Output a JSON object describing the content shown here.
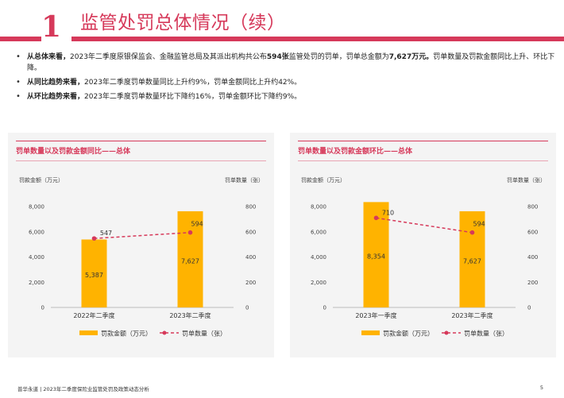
{
  "header": {
    "section_number": "1",
    "title": "监管处罚总体情况（续）"
  },
  "bullets": [
    {
      "lead": "从总体来看，",
      "text_before": "2023年二季度原银保监会、金融监管总局及其派出机构共公布",
      "bold_count": "594张",
      "text_mid": "监管处罚的罚单，罚单总金额为",
      "bold_amount": "7,627万元。",
      "text_after": "罚单数量及罚款金额同比上升、环比下降。"
    },
    {
      "lead": "从同比趋势来看，",
      "text": "2023年二季度罚单数量同比上升约9%，罚单金额同比上升约42%。"
    },
    {
      "lead": "从环比趋势来看，",
      "text": "2023年二季度罚单数量环比下降约16%，罚单金额环比下降约9%。"
    }
  ],
  "colors": {
    "accent": "#d6395a",
    "bar": "#ffb300",
    "line": "#d6395a",
    "panel_bg": "#f4f4f4"
  },
  "chart_data": [
    {
      "type": "bar",
      "title": "罚单数量以及罚款金额同比——总体",
      "categories": [
        "2022年二季度",
        "2023年二季度"
      ],
      "series": [
        {
          "name": "罚款金额（万元）",
          "type": "bar",
          "axis": "left",
          "values": [
            5387,
            7627
          ],
          "labels": [
            "5,387",
            "7,627"
          ]
        },
        {
          "name": "罚单数量（张）",
          "type": "line",
          "axis": "right",
          "values": [
            547,
            594
          ],
          "labels": [
            "547",
            "594"
          ]
        }
      ],
      "ylabel_left": "罚款金额（万元）",
      "ylabel_right": "罚单数量（张）",
      "ylim_left": [
        0,
        8000
      ],
      "ylim_right": [
        0,
        800
      ],
      "ticks_left": [
        "0",
        "2,000",
        "4,000",
        "6,000",
        "8,000"
      ],
      "ticks_right": [
        "0",
        "200",
        "400",
        "600",
        "800"
      ],
      "legend": [
        "罚款金额（万元）",
        "罚单数量（张）"
      ]
    },
    {
      "type": "bar",
      "title": "罚单数量以及罚款金额环比——总体",
      "categories": [
        "2023年一季度",
        "2023年二季度"
      ],
      "series": [
        {
          "name": "罚款金额（万元）",
          "type": "bar",
          "axis": "left",
          "values": [
            8354,
            7627
          ],
          "labels": [
            "8,354",
            "7,627"
          ]
        },
        {
          "name": "罚单数量（张）",
          "type": "line",
          "axis": "right",
          "values": [
            710,
            594
          ],
          "labels": [
            "710",
            "594"
          ]
        }
      ],
      "ylabel_left": "罚款金额（万元）",
      "ylabel_right": "罚单数量（张）",
      "ylim_left": [
        0,
        8000
      ],
      "ylim_right": [
        0,
        800
      ],
      "ticks_left": [
        "0",
        "2,000",
        "4,000",
        "6,000",
        "8,000"
      ],
      "ticks_right": [
        "0",
        "200",
        "400",
        "600",
        "800"
      ],
      "legend": [
        "罚款金额（万元）",
        "罚单数量（张）"
      ]
    }
  ],
  "footer": {
    "text": "普华永道 | 2023年二季度保险业监管处罚及政策动态分析",
    "page": "5"
  }
}
